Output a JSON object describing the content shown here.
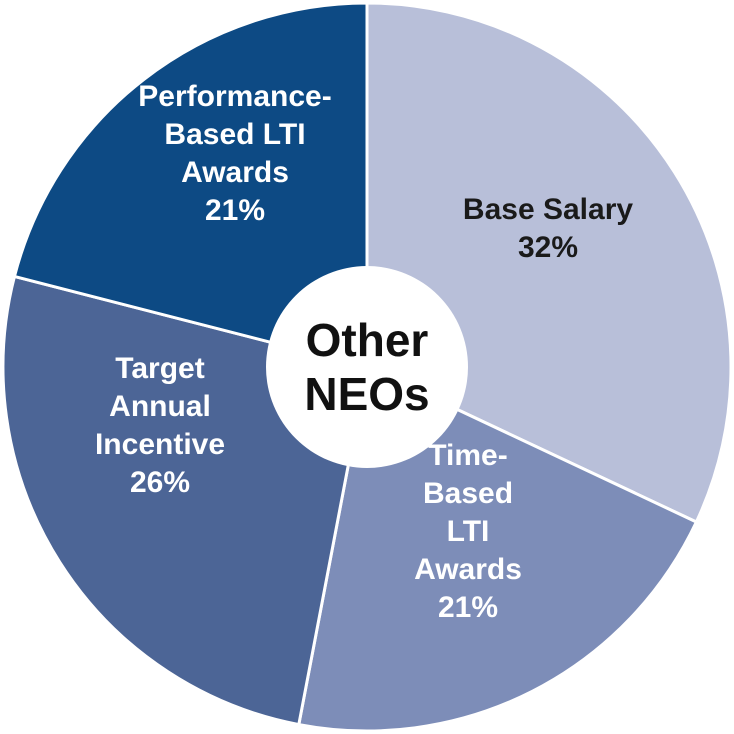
{
  "chart_data": {
    "type": "pie",
    "donut": true,
    "start": "top",
    "direction": "clockwise",
    "center_label": [
      "Other",
      "NEOs"
    ],
    "slices": [
      {
        "label_lines": [
          "Base Salary",
          "32%"
        ],
        "value": 32,
        "color": "#b8bfd9",
        "text_color": "#1a1a1a"
      },
      {
        "label_lines": [
          "Time-",
          "Based",
          "LTI",
          "Awards",
          "21%"
        ],
        "value": 21,
        "color": "#7d8db8",
        "text_color": "#ffffff"
      },
      {
        "label_lines": [
          "Target",
          "Annual",
          "Incentive",
          "26%"
        ],
        "value": 26,
        "color": "#4c6596",
        "text_color": "#ffffff"
      },
      {
        "label_lines": [
          "Performance-",
          "Based LTI",
          "Awards",
          "21%"
        ],
        "value": 21,
        "color": "#0d4a84",
        "text_color": "#ffffff"
      }
    ]
  }
}
